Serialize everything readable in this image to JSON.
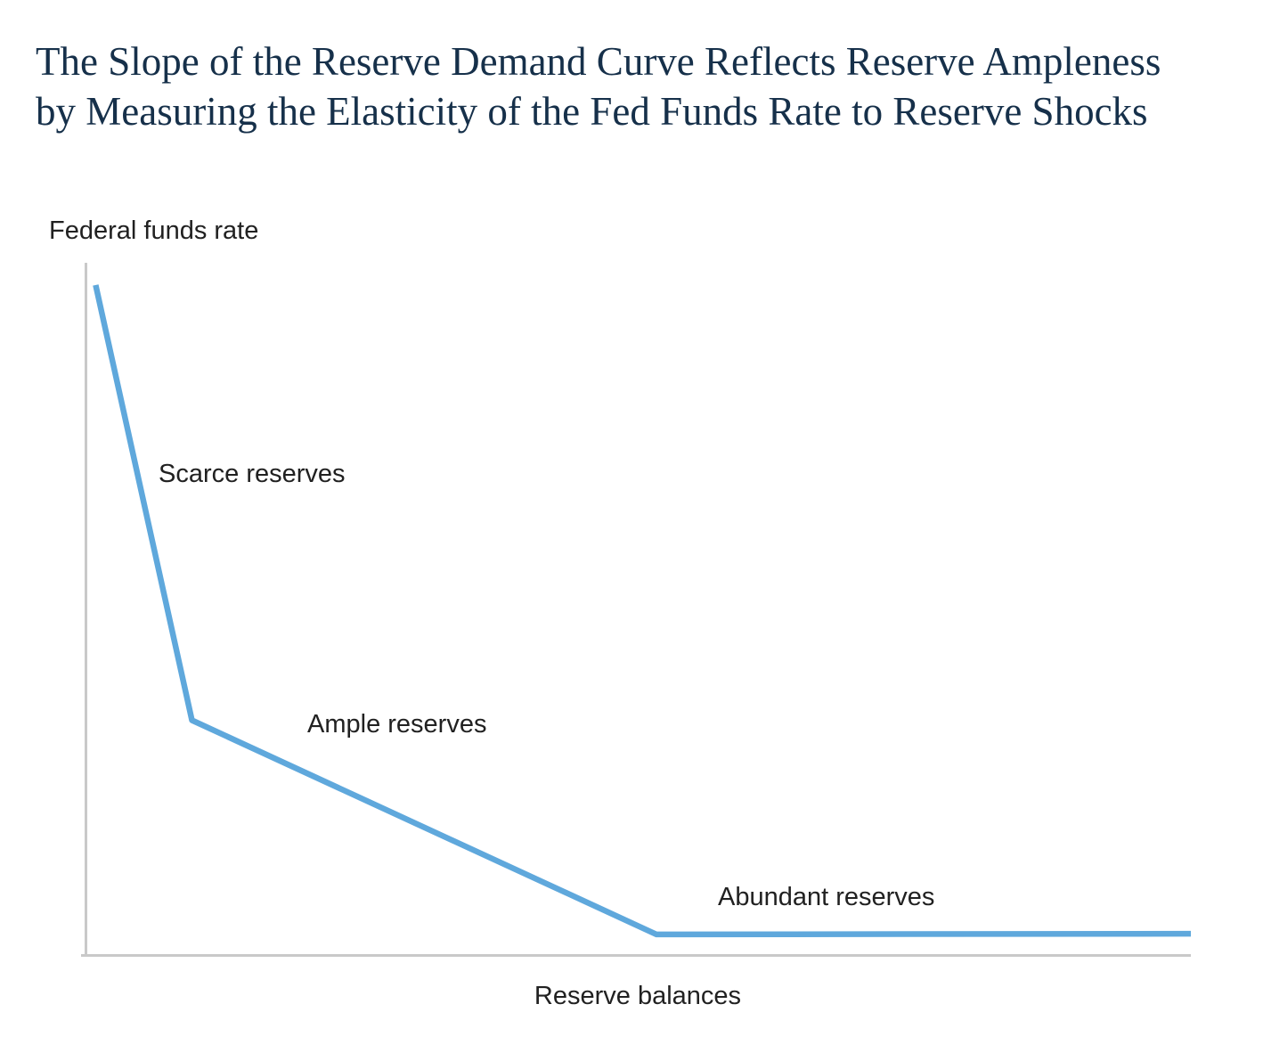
{
  "page": {
    "title": "The Slope of the Reserve Demand Curve Reflects Reserve Ampleness by Measuring the Elasticity of the Fed Funds Rate to Reserve Shocks"
  },
  "chart": {
    "y_axis_label": "Federal funds rate",
    "x_axis_label": "Reserve balances",
    "region_labels": {
      "scarce": "Scarce reserves",
      "ample": "Ample reserves",
      "abundant": "Abundant reserves"
    }
  },
  "chart_data": {
    "type": "line",
    "title": "The Slope of the Reserve Demand Curve Reflects Reserve Ampleness by Measuring the Elasticity of the Fed Funds Rate to Reserve Shocks",
    "xlabel": "Reserve balances",
    "ylabel": "Federal funds rate",
    "axes_numeric": false,
    "grid": false,
    "legend": "none",
    "series": [
      {
        "name": "Reserve demand curve",
        "points_pct": [
          [
            1.0,
            3.2
          ],
          [
            9.7,
            66.0
          ],
          [
            51.7,
            96.9
          ],
          [
            100,
            96.8
          ]
        ]
      }
    ],
    "annotations": [
      {
        "label": "Scarce reserves",
        "segment": "steep-left"
      },
      {
        "label": "Ample reserves",
        "segment": "moderate-middle"
      },
      {
        "label": "Abundant reserves",
        "segment": "flat-right"
      }
    ],
    "colors": {
      "curve": "#5fa8dc",
      "axis": "#c9c9c9",
      "title": "#16304a",
      "labels": "#212121"
    }
  }
}
